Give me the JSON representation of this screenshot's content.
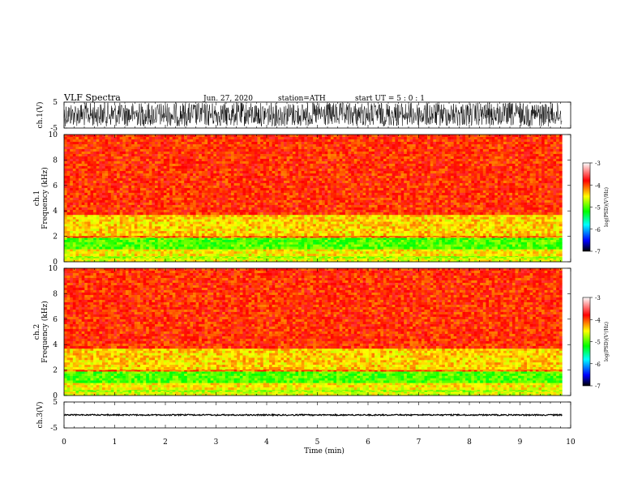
{
  "header": {
    "title": "VLF  Spectra",
    "date": "Jun. 27, 2020",
    "station": "station=ATH",
    "start_ut": "start  UT  =    5  : 0   : 1"
  },
  "chart_data": [
    {
      "type": "line",
      "name": "ch1-waveform",
      "ylabel": "ch.1(V)",
      "ylim": [
        -5,
        5
      ],
      "yticks": [
        "5",
        "-5"
      ],
      "xlim": [
        0,
        10
      ],
      "trace": {
        "mean": 0.2,
        "amplitude": 4.6,
        "x_end": 9.83
      }
    },
    {
      "type": "heatmap",
      "name": "ch1-spectrogram",
      "ylabel": "ch.1\nFrequency  (kHz)",
      "ylim": [
        0,
        10
      ],
      "yticks": [
        "0",
        "2",
        "4",
        "6",
        "8",
        "10"
      ],
      "xlim": [
        0,
        10
      ],
      "x_end": 9.83,
      "colorbar": {
        "label": "log(PSD)(V²/Hz)",
        "range": [
          -7,
          -3
        ],
        "ticks": [
          "-3",
          "-4",
          "-5",
          "-6",
          "-7"
        ]
      },
      "bands": [
        {
          "f": [
            0.0,
            0.3
          ],
          "level": -4.6
        },
        {
          "f": [
            0.3,
            0.45
          ],
          "level": -4.8
        },
        {
          "f": [
            0.45,
            1.0
          ],
          "level": -4.5
        },
        {
          "f": [
            1.0,
            1.9
          ],
          "level": -5.0
        },
        {
          "f": [
            1.9,
            2.05
          ],
          "level": -4.1
        },
        {
          "f": [
            2.05,
            3.7
          ],
          "level": -4.4
        },
        {
          "f": [
            3.7,
            10.0
          ],
          "level": -3.9
        }
      ]
    },
    {
      "type": "heatmap",
      "name": "ch2-spectrogram",
      "ylabel": "ch.2\nFrequency  (kHz)",
      "ylim": [
        0,
        10
      ],
      "yticks": [
        "0",
        "2",
        "4",
        "6",
        "8",
        "10"
      ],
      "xlim": [
        0,
        10
      ],
      "x_end": 9.83,
      "colorbar": {
        "label": "log(PSD)(V²/Hz)",
        "range": [
          -7,
          -3
        ],
        "ticks": [
          "-3",
          "-4",
          "-5",
          "-6",
          "-7"
        ]
      },
      "bands": [
        {
          "f": [
            0.0,
            0.3
          ],
          "level": -4.6
        },
        {
          "f": [
            0.3,
            0.45
          ],
          "level": -4.8
        },
        {
          "f": [
            0.45,
            1.0
          ],
          "level": -4.5
        },
        {
          "f": [
            1.0,
            1.9
          ],
          "level": -5.0
        },
        {
          "f": [
            1.9,
            2.05
          ],
          "level": -4.1
        },
        {
          "f": [
            2.05,
            3.7
          ],
          "level": -4.4
        },
        {
          "f": [
            3.7,
            10.0
          ],
          "level": -3.9
        }
      ]
    },
    {
      "type": "line",
      "name": "ch3-waveform",
      "ylabel": "ch.3(V)",
      "ylim": [
        -5,
        5
      ],
      "yticks": [
        "5",
        "-5"
      ],
      "xlim": [
        0,
        10
      ],
      "trace": {
        "mean": 0.0,
        "amplitude": 0.25,
        "x_end": 9.83
      }
    }
  ],
  "x_axis": {
    "label": "Time  (min)",
    "ticks": [
      "0",
      "1",
      "2",
      "3",
      "4",
      "5",
      "6",
      "7",
      "8",
      "9",
      "10"
    ]
  },
  "colors": {
    "frame": "#000000",
    "trace": "#000000",
    "colormap": [
      "#000000",
      "#0000ff",
      "#00ffff",
      "#00ff00",
      "#ffff00",
      "#ff0000",
      "#ffffff"
    ]
  }
}
